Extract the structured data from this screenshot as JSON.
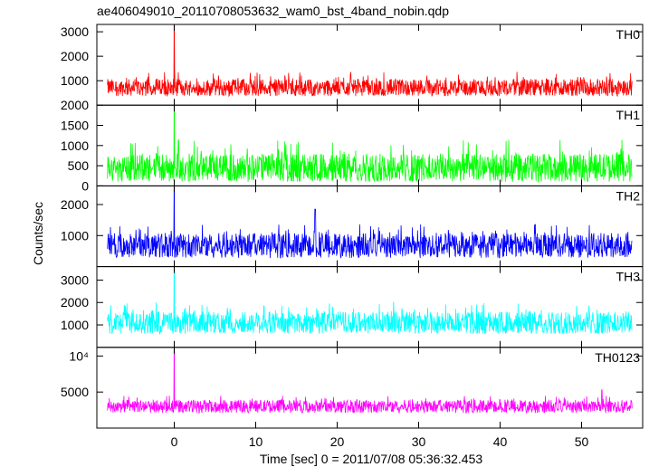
{
  "chart_data": {
    "type": "line",
    "title": "ae406049010_20110708053632_wam0_bst_4band_nobin.qdp",
    "xlabel": "Time [sec] 0 = 2011/07/08 05:36:32.453",
    "ylabel": "Counts/sec",
    "xlim": [
      -9.5,
      57.5
    ],
    "xticks": [
      0,
      10,
      20,
      30,
      40,
      50
    ],
    "grid": false,
    "panels": [
      {
        "name": "TH0",
        "color": "#ff0000",
        "ylim": [
          0,
          3300
        ],
        "yticks": [
          1000,
          2000,
          3000
        ],
        "baseline": 720,
        "noise_low": 350,
        "noise_high": 650,
        "spike": {
          "x": 0.0,
          "value": 3300
        },
        "bumps": [
          {
            "x": 0.0,
            "value": 1400
          }
        ],
        "x_start": -8.2,
        "x_end": 56.2
      },
      {
        "name": "TH1",
        "color": "#00ff00",
        "ylim": [
          0,
          2000
        ],
        "yticks": [
          0,
          500,
          1000,
          1500,
          2000
        ],
        "baseline": 450,
        "noise_low": 350,
        "noise_high": 700,
        "spike": {
          "x": 0.0,
          "value": 2000
        },
        "bumps": [],
        "x_start": -8.2,
        "x_end": 56.2
      },
      {
        "name": "TH2",
        "color": "#0000ff",
        "ylim": [
          0,
          2600
        ],
        "yticks": [
          1000,
          2000
        ],
        "baseline": 680,
        "noise_low": 400,
        "noise_high": 700,
        "spike": {
          "x": 0.0,
          "value": 2600
        },
        "bumps": [
          {
            "x": 17.3,
            "value": 1850
          }
        ],
        "x_start": -8.2,
        "x_end": 56.2
      },
      {
        "name": "TH3",
        "color": "#00ffff",
        "ylim": [
          0,
          3600
        ],
        "yticks": [
          1000,
          2000,
          3000
        ],
        "baseline": 1100,
        "noise_low": 500,
        "noise_high": 950,
        "spike": {
          "x": 0.0,
          "value": 3600
        },
        "bumps": [],
        "x_start": -8.2,
        "x_end": 56.2
      },
      {
        "name": "TH0123",
        "color": "#ff00ff",
        "ylim": [
          0,
          11200
        ],
        "yticks": [
          5000,
          10000
        ],
        "ytick_labels": [
          "5000",
          "10⁴"
        ],
        "baseline": 3000,
        "noise_low": 900,
        "noise_high": 1500,
        "spike": {
          "x": 0.0,
          "value": 11200
        },
        "bumps": [
          {
            "x": 52.5,
            "value": 5300
          }
        ],
        "x_start": -8.2,
        "x_end": 56.2
      }
    ]
  }
}
